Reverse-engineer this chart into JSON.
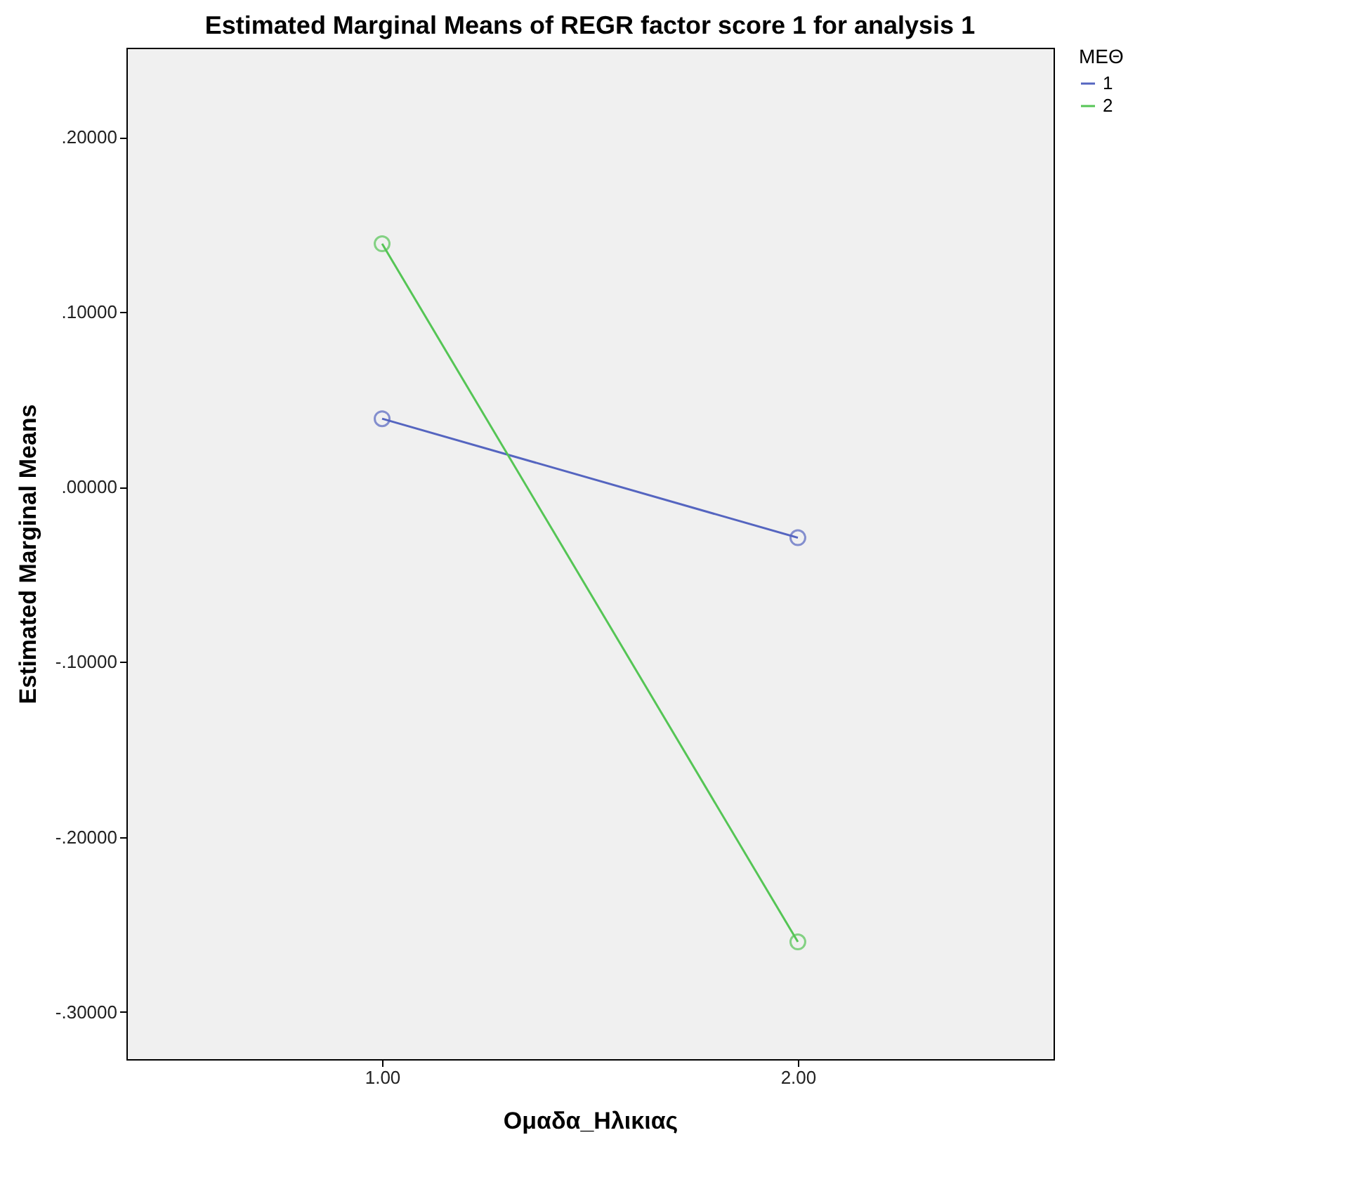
{
  "chart_data": {
    "type": "line",
    "title": "Estimated Marginal Means of REGR factor score   1 for analysis 1",
    "xlabel": "Ομαδα_Ηλικιας",
    "ylabel": "Estimated Marginal Means",
    "legend_title": "ΜΕΘ",
    "categories": [
      "1.00",
      "2.00"
    ],
    "series": [
      {
        "name": "1",
        "color": "#5565c0",
        "values": [
          0.039,
          -0.029
        ]
      },
      {
        "name": "2",
        "color": "#55c555",
        "values": [
          0.139,
          -0.26
        ]
      }
    ],
    "ylim": [
      -0.327,
      0.251
    ],
    "yticks": [
      {
        "value": -0.3,
        "label": "-.30000"
      },
      {
        "value": -0.2,
        "label": "-.20000"
      },
      {
        "value": -0.1,
        "label": "-.10000"
      },
      {
        "value": 0,
        "label": ".00000"
      },
      {
        "value": 0.1,
        "label": ".10000"
      },
      {
        "value": 0.2,
        "label": ".20000"
      }
    ],
    "grid": false,
    "legend": "top right",
    "marker": "circle",
    "line_style": "solid"
  }
}
